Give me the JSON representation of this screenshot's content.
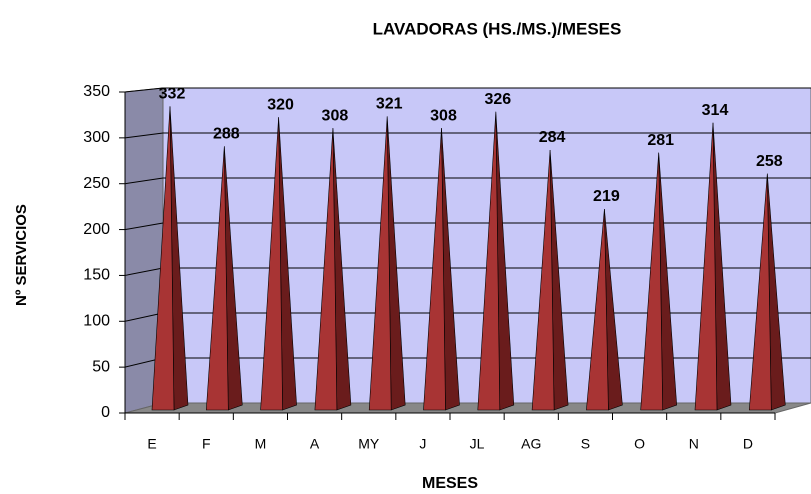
{
  "chart_data": {
    "type": "bar",
    "title": "LAVADORAS (HS./MS.)/MESES",
    "x_label": "MESES",
    "y_label": "Nº SERVICIOS",
    "categories": [
      "E",
      "F",
      "M",
      "A",
      "MY",
      "J",
      "JL",
      "AG",
      "S",
      "O",
      "N",
      "D"
    ],
    "values": [
      332,
      288,
      320,
      308,
      321,
      308,
      326,
      284,
      219,
      281,
      314,
      258
    ],
    "color": "#a83434",
    "ylim": [
      0,
      350
    ],
    "yticks": [
      0,
      50,
      100,
      150,
      200,
      250,
      300,
      350
    ],
    "grid": true
  }
}
